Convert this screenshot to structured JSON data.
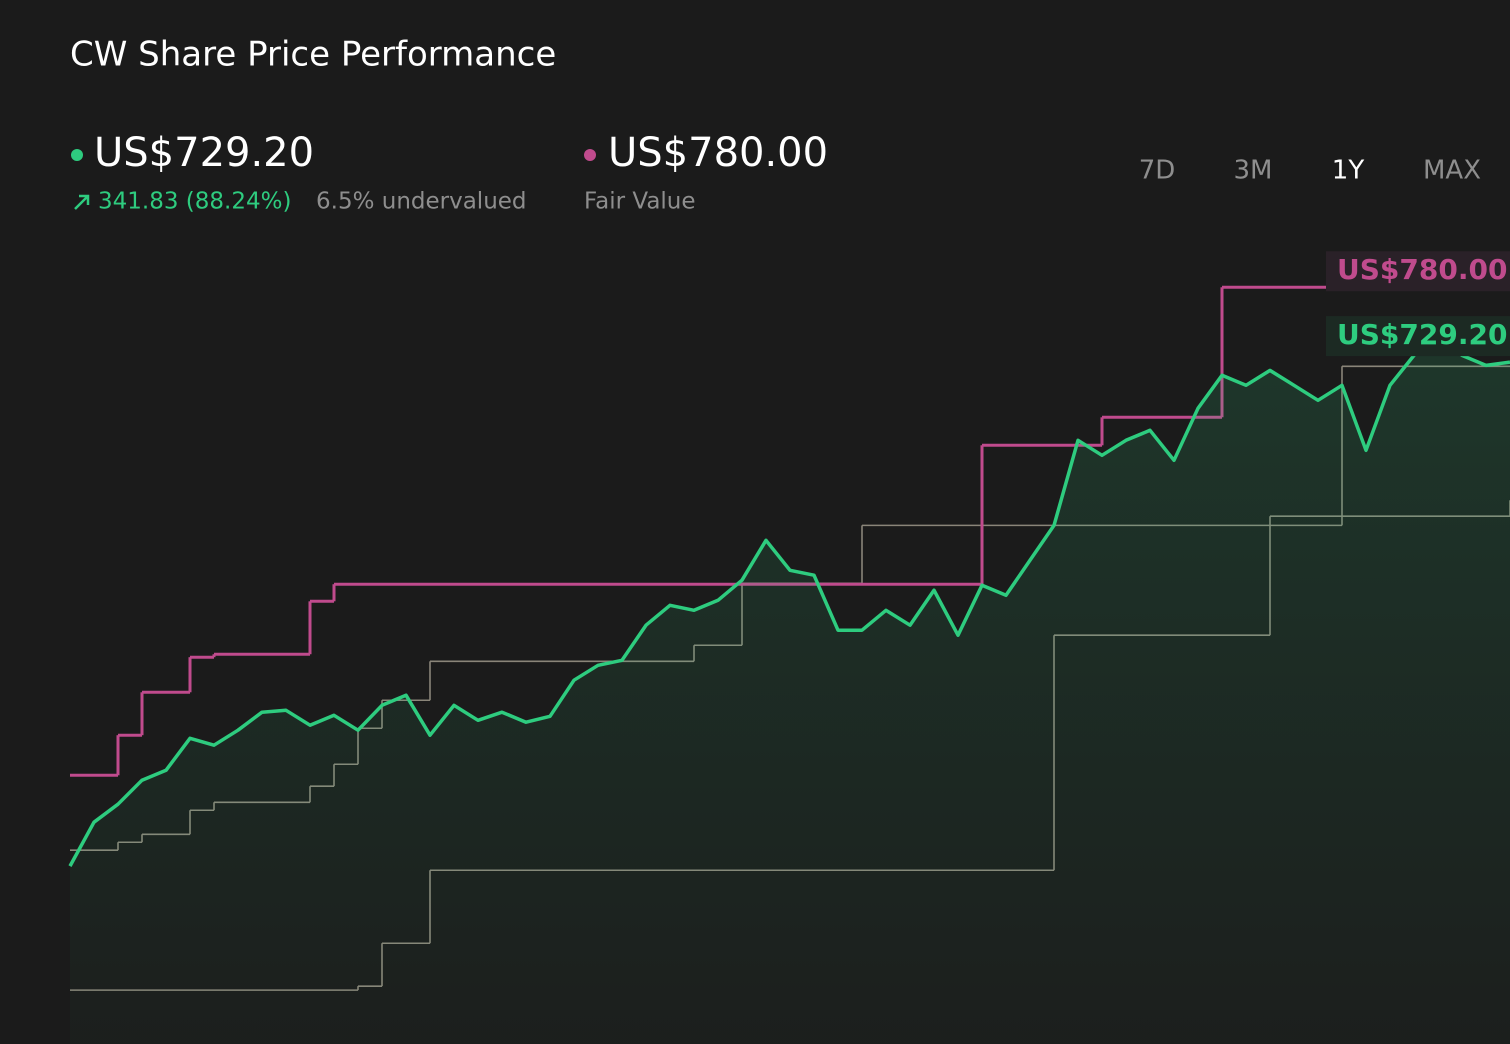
{
  "chart_data": {
    "type": "line",
    "title": "CW Share Price Performance",
    "price_label": "US$729.20",
    "change_label": "341.83 (88.24%)",
    "valuation_label": "6.5% undervalued",
    "fair_value_label": "US$780.00",
    "fair_value_caption": "Fair Value",
    "periods": [
      "7D",
      "3M",
      "1Y",
      "MAX"
    ],
    "active_period": "1Y",
    "ylim": [
      300,
      810
    ],
    "series": [
      {
        "name": "US$729.20",
        "color": "#2ecc7f",
        "area": true,
        "values": [
          387.4,
          417.2,
          429.4,
          445.7,
          452.4,
          474.1,
          469.4,
          479.6,
          491.8,
          493.1,
          483.0,
          489.7,
          479.6,
          496.5,
          503.3,
          476.2,
          496.5,
          486.3,
          491.8,
          485.0,
          489.0,
          513.5,
          523.6,
          527.0,
          550.8,
          564.3,
          560.9,
          567.7,
          581.3,
          608.4,
          588.0,
          584.7,
          547.4,
          547.4,
          560.9,
          550.8,
          574.5,
          544.0,
          577.9,
          571.1,
          594.8,
          618.5,
          676.2,
          666.0,
          676.2,
          683.0,
          662.6,
          697.9,
          720.3,
          713.5,
          723.6,
          713.5,
          703.3,
          713.5,
          669.4,
          713.5,
          733.8,
          750.8,
          733.8,
          727.0,
          729.2
        ]
      },
      {
        "name": "US$780.00",
        "color": "#c04b8d",
        "step": true,
        "values": [
          449.0,
          449.0,
          476.2,
          505.3,
          505.3,
          529.1,
          531.1,
          531.1,
          531.1,
          531.1,
          567.0,
          578.6,
          578.6,
          578.6,
          578.6,
          578.6,
          578.6,
          578.6,
          578.6,
          578.6,
          578.6,
          578.6,
          578.6,
          578.6,
          578.6,
          578.6,
          578.6,
          578.6,
          578.6,
          578.6,
          578.6,
          578.6,
          578.6,
          578.6,
          578.6,
          578.6,
          578.6,
          578.6,
          672.8,
          672.8,
          672.8,
          672.8,
          672.8,
          691.8,
          691.8,
          691.8,
          691.8,
          691.8,
          780,
          780,
          780,
          780,
          780,
          780,
          780,
          780,
          780,
          780,
          780,
          780,
          780
        ]
      },
      {
        "color": "#8a8579",
        "step": true,
        "values": [
          398.2,
          398.2,
          403.6,
          409.0,
          409.0,
          425.3,
          430.7,
          430.7,
          430.7,
          430.7,
          441.6,
          456.5,
          480.9,
          499.9,
          499.9,
          526.3,
          526.3,
          526.3,
          526.3,
          526.3,
          526.3,
          526.3,
          526.3,
          526.3,
          526.3,
          526.3,
          537.2,
          537.2,
          579.2,
          579.2,
          579.2,
          579.2,
          579.2,
          618.5,
          618.5,
          618.5,
          618.5,
          618.5,
          618.5,
          618.5,
          618.5,
          618.5,
          618.5,
          618.5,
          618.5,
          618.5,
          618.5,
          618.5,
          618.5,
          618.5,
          618.5,
          618.5,
          618.5,
          726.4,
          726.4,
          726.4,
          726.4,
          726.4,
          726.4,
          726.4,
          726.4
        ]
      },
      {
        "color": "#8a8579",
        "step": true,
        "values": [
          303.3,
          303.3,
          303.3,
          303.3,
          303.3,
          303.3,
          303.3,
          303.3,
          303.3,
          303.3,
          303.3,
          303.3,
          306.0,
          335.1,
          335.1,
          384.6,
          384.6,
          384.6,
          384.6,
          384.6,
          384.6,
          384.6,
          384.6,
          384.6,
          384.6,
          384.6,
          384.6,
          384.6,
          384.6,
          384.6,
          384.6,
          384.6,
          384.6,
          384.6,
          384.6,
          384.6,
          384.6,
          384.6,
          384.6,
          384.6,
          384.6,
          544.0,
          544.0,
          544.0,
          544.0,
          544.0,
          544.0,
          544.0,
          544.0,
          544.0,
          624.7,
          624.7,
          624.7,
          624.7,
          624.7,
          624.7,
          624.7,
          624.7,
          624.7,
          624.7,
          635.5
        ]
      }
    ]
  }
}
